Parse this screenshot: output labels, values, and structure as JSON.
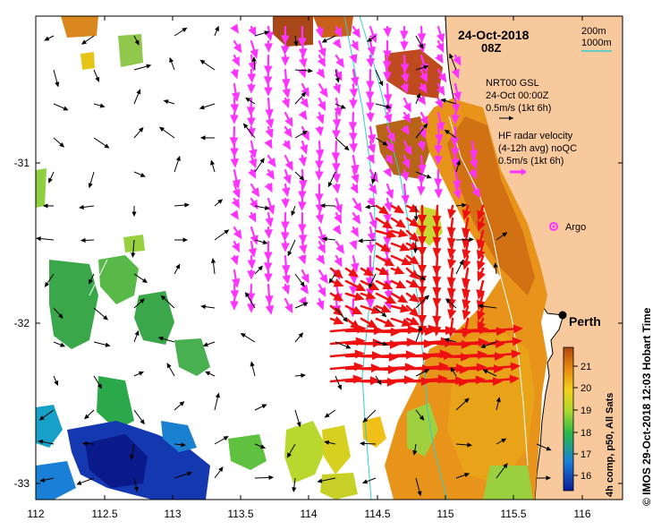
{
  "date_title": "24-Oct-2018",
  "time_title": "08Z",
  "isobath": {
    "line1": "200m",
    "line2": "1000m",
    "color": "#33cccc"
  },
  "nrt_legend": {
    "line1": "NRT00 GSL",
    "line2": "24-Oct 00:00Z",
    "line3": "0.5m/s (1kt 6h)"
  },
  "hf_legend": {
    "line1": "HF radar velocity",
    "line2": "(4-12h avg) noQC",
    "line3": "0.5m/s (1kt 6h)"
  },
  "argo_label": "Argo",
  "city_label": "Perth",
  "colorbar": {
    "ticks": [
      "21",
      "20",
      "19",
      "18",
      "17",
      "16"
    ],
    "caption": "4h comp, p50, All Sats"
  },
  "side_label": "© IMOS 29-Oct-2018 12:03 Hobart Time",
  "x_ticks": [
    "112",
    "112.5",
    "113",
    "113.5",
    "114",
    "114.5",
    "115",
    "115.5",
    "116"
  ],
  "y_ticks": [
    "-31",
    "-32",
    "-33"
  ],
  "colors": {
    "land": "#f9c99e",
    "radar": "#ff33ff",
    "radar_strong": "#ee1111",
    "model": "#000000",
    "isobath": "#33cccc",
    "argo": "#ff33ff"
  }
}
